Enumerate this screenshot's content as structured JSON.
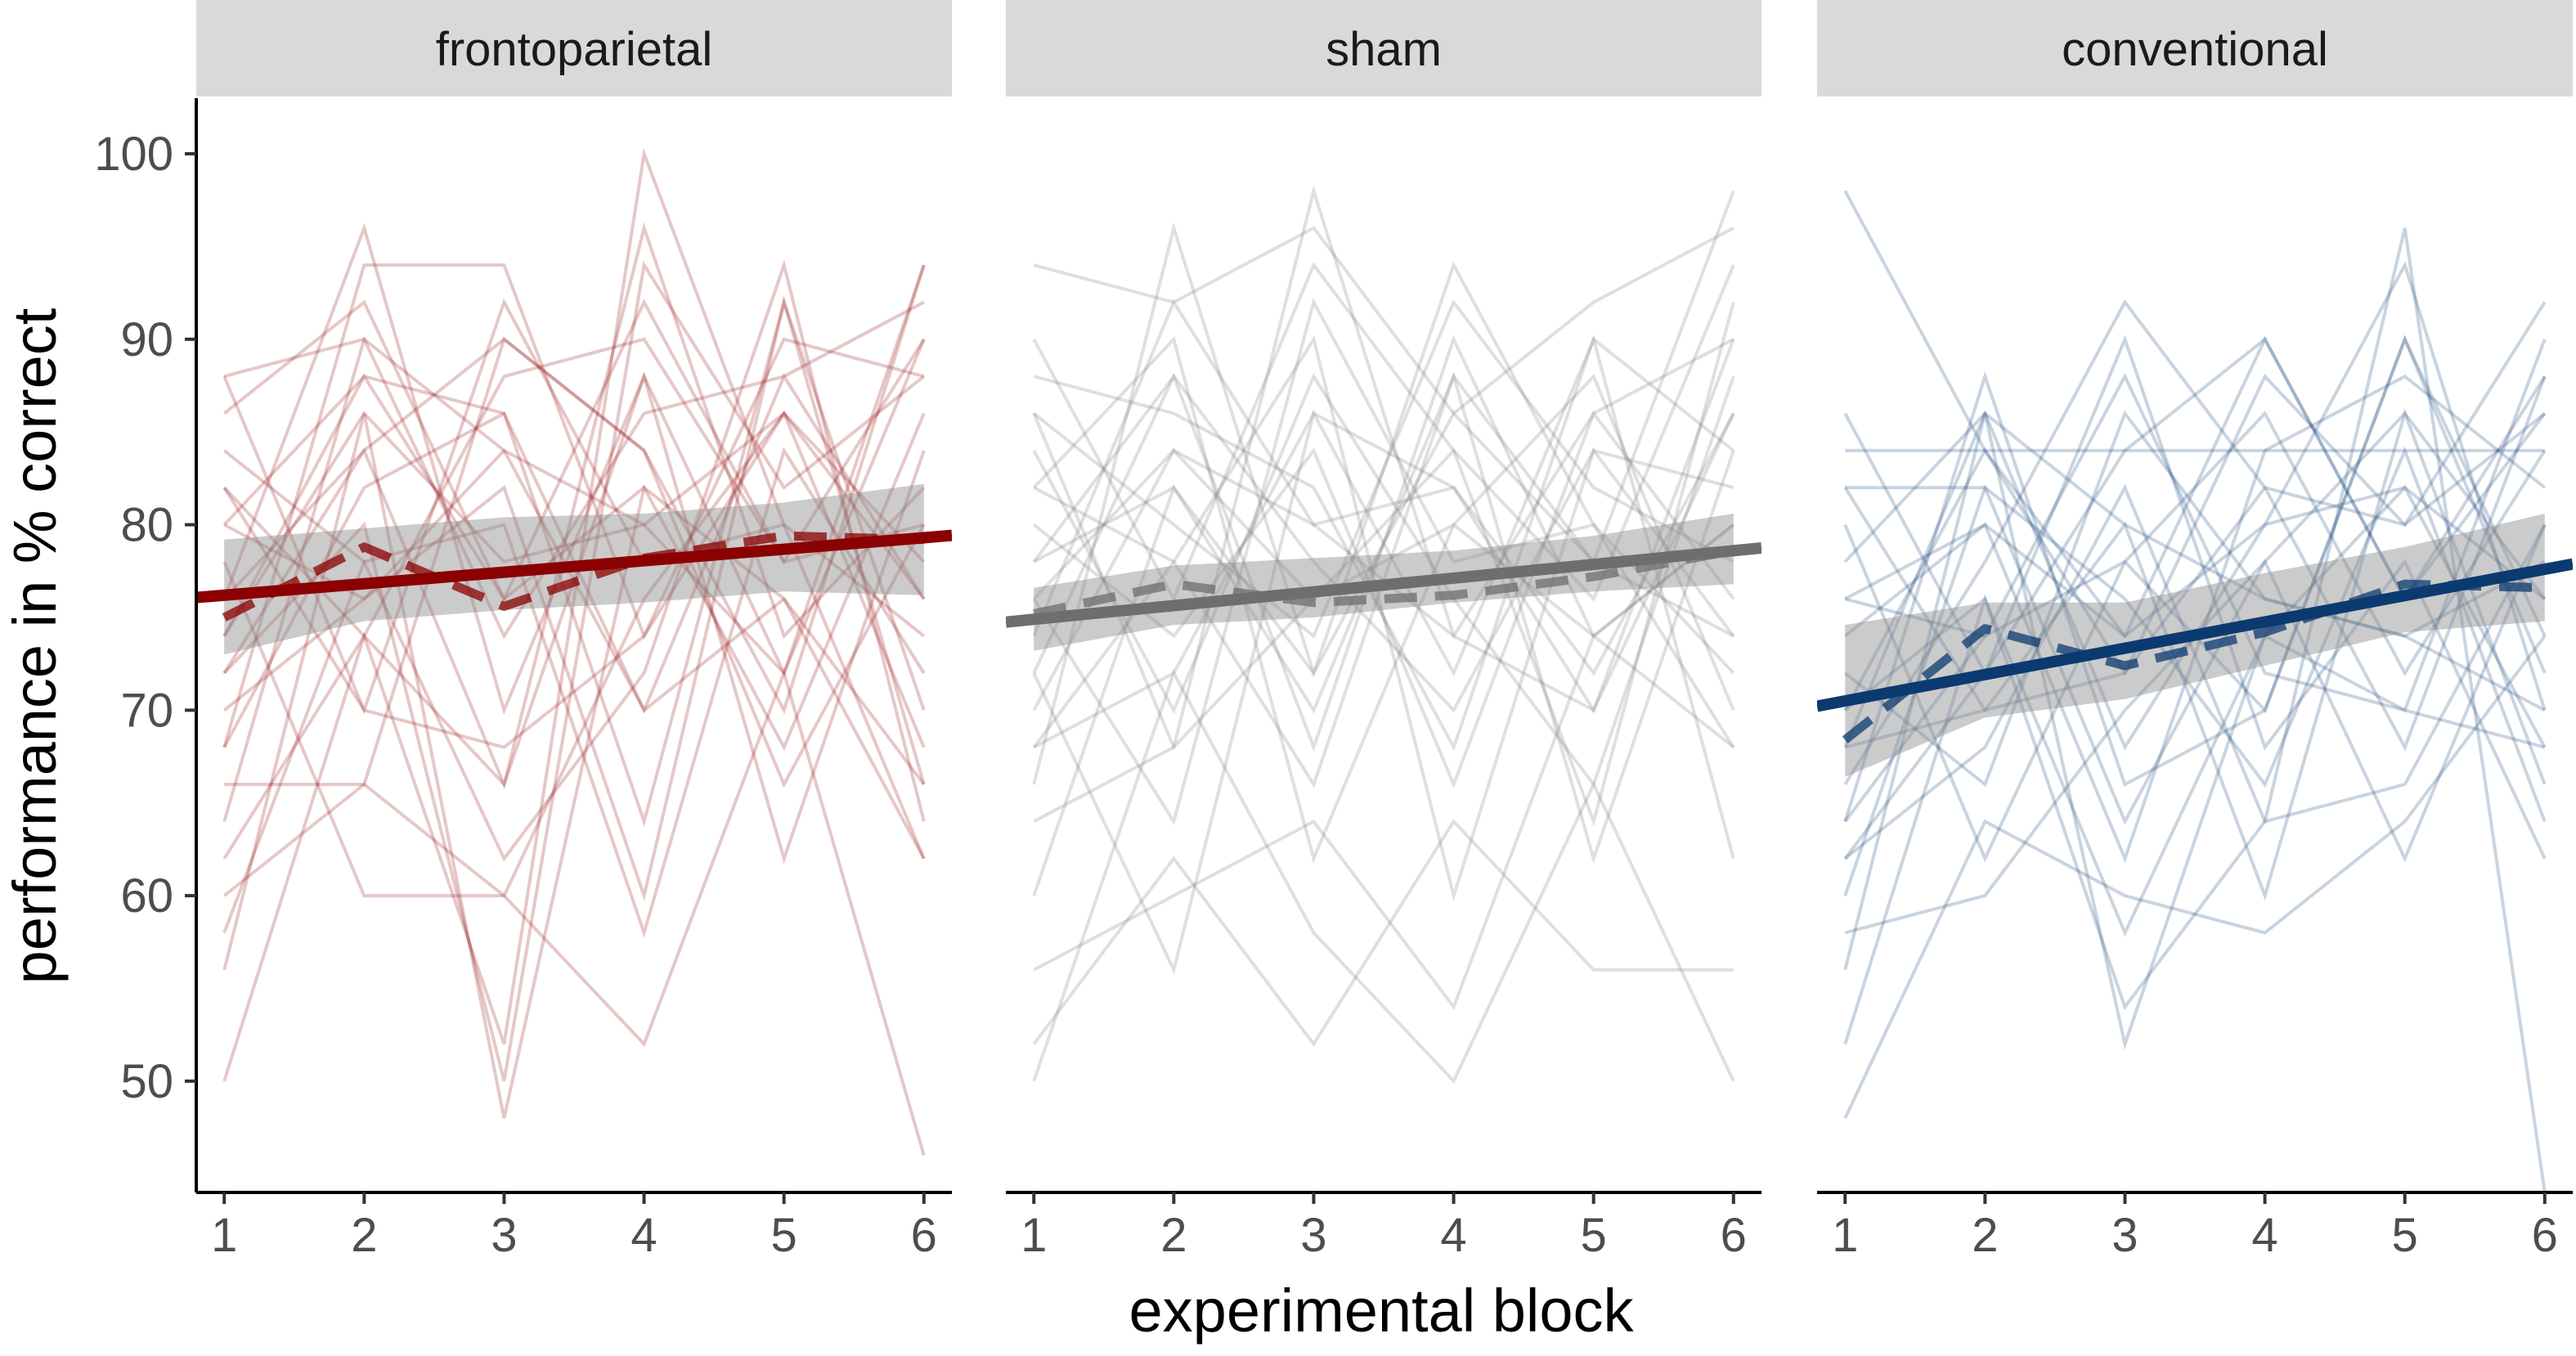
{
  "chart_data": {
    "type": "line",
    "xlabel": "experimental block",
    "ylabel": "performance in % correct",
    "x": [
      1,
      2,
      3,
      4,
      5,
      6
    ],
    "xlim": [
      0.8,
      6.2
    ],
    "ylim": [
      44,
      103
    ],
    "xticks": [
      1,
      2,
      3,
      4,
      5,
      6
    ],
    "yticks": [
      50,
      60,
      70,
      80,
      90,
      100
    ],
    "grid": false,
    "panels": [
      {
        "label": "frontoparietal",
        "color": "#8b0000",
        "fit_start": 76.2,
        "fit_end": 79.3,
        "band": {
          "lower": [
            73.0,
            74.8,
            75.4,
            75.8,
            76.4,
            76.2
          ],
          "upper": [
            79.2,
            79.8,
            80.4,
            80.6,
            81.2,
            82.2
          ]
        },
        "mean": [
          75.0,
          78.8,
          75.6,
          78.2,
          79.4,
          79.2
        ],
        "participants": [
          [
            50,
            74,
            66,
            88,
            72,
            94
          ],
          [
            56,
            86,
            48,
            82,
            76,
            62
          ],
          [
            60,
            66,
            60,
            52,
            72,
            46
          ],
          [
            62,
            74,
            52,
            100,
            80,
            62
          ],
          [
            64,
            90,
            84,
            70,
            88,
            76
          ],
          [
            66,
            66,
            90,
            84,
            70,
            94
          ],
          [
            68,
            94,
            94,
            74,
            86,
            76
          ],
          [
            70,
            76,
            82,
            60,
            92,
            66
          ],
          [
            72,
            80,
            50,
            94,
            82,
            88
          ],
          [
            74,
            86,
            78,
            80,
            72,
            90
          ],
          [
            76,
            96,
            70,
            88,
            62,
            84
          ],
          [
            78,
            60,
            60,
            76,
            86,
            68
          ],
          [
            80,
            88,
            86,
            64,
            92,
            70
          ],
          [
            82,
            74,
            88,
            90,
            78,
            80
          ],
          [
            84,
            78,
            62,
            72,
            94,
            64
          ],
          [
            86,
            92,
            76,
            82,
            68,
            86
          ],
          [
            88,
            70,
            92,
            78,
            80,
            74
          ],
          [
            88,
            90,
            74,
            86,
            88,
            92
          ],
          [
            72,
            84,
            66,
            96,
            74,
            82
          ],
          [
            58,
            78,
            80,
            58,
            84,
            72
          ],
          [
            76,
            84,
            90,
            84,
            66,
            80
          ],
          [
            82,
            70,
            68,
            74,
            90,
            88
          ],
          [
            68,
            82,
            86,
            70,
            76,
            66
          ],
          [
            74,
            88,
            76,
            92,
            78,
            90
          ],
          [
            80,
            76,
            84,
            80,
            86,
            78
          ]
        ]
      },
      {
        "label": "sham",
        "color": "#6e6e6e",
        "fit_start": 74.9,
        "fit_end": 78.6,
        "band": {
          "lower": [
            73.2,
            74.6,
            75.0,
            75.8,
            76.4,
            76.8
          ],
          "upper": [
            76.6,
            77.8,
            78.2,
            78.6,
            79.4,
            80.6
          ]
        },
        "mean": [
          75.2,
          76.8,
          75.8,
          76.2,
          77.2,
          78.6
        ],
        "participants": [
          [
            50,
            72,
            58,
            50,
            66,
            50
          ],
          [
            52,
            62,
            52,
            64,
            56,
            56
          ],
          [
            56,
            60,
            64,
            54,
            74,
            68
          ],
          [
            60,
            82,
            70,
            88,
            62,
            84
          ],
          [
            64,
            68,
            98,
            74,
            70,
            90
          ],
          [
            66,
            96,
            72,
            86,
            78,
            98
          ],
          [
            68,
            78,
            90,
            60,
            84,
            74
          ],
          [
            70,
            84,
            76,
            84,
            64,
            92
          ],
          [
            72,
            56,
            86,
            72,
            90,
            62
          ],
          [
            74,
            92,
            80,
            82,
            70,
            86
          ],
          [
            76,
            64,
            92,
            78,
            80,
            68
          ],
          [
            78,
            88,
            68,
            90,
            74,
            80
          ],
          [
            80,
            74,
            84,
            66,
            86,
            76
          ],
          [
            82,
            90,
            62,
            80,
            88,
            70
          ],
          [
            84,
            70,
            88,
            76,
            66,
            88
          ],
          [
            86,
            80,
            74,
            92,
            82,
            78
          ],
          [
            88,
            86,
            82,
            68,
            90,
            84
          ],
          [
            90,
            76,
            94,
            84,
            76,
            94
          ],
          [
            94,
            92,
            96,
            86,
            92,
            96
          ],
          [
            78,
            82,
            72,
            94,
            80,
            72
          ],
          [
            72,
            88,
            78,
            70,
            84,
            82
          ],
          [
            68,
            72,
            86,
            82,
            72,
            86
          ],
          [
            82,
            78,
            66,
            88,
            78,
            74
          ],
          [
            76,
            84,
            80,
            74,
            86,
            90
          ],
          [
            86,
            68,
            76,
            80,
            74,
            80
          ]
        ]
      },
      {
        "label": "conventional",
        "color": "#0b3a70",
        "fit_start": 70.5,
        "fit_end": 77.6,
        "band": {
          "lower": [
            66.4,
            69.6,
            70.6,
            72.4,
            74.2,
            74.8
          ],
          "upper": [
            74.6,
            75.8,
            75.8,
            77.4,
            78.8,
            80.6
          ]
        },
        "mean": [
          68.4,
          74.4,
          72.4,
          74.2,
          76.8,
          76.6
        ],
        "participants": [
          [
            48,
            64,
            60,
            58,
            64,
            74
          ],
          [
            52,
            76,
            54,
            64,
            96,
            44
          ],
          [
            56,
            86,
            52,
            74,
            70,
            68
          ],
          [
            58,
            60,
            70,
            78,
            62,
            80
          ],
          [
            60,
            82,
            76,
            66,
            84,
            64
          ],
          [
            62,
            72,
            84,
            90,
            76,
            86
          ],
          [
            64,
            88,
            66,
            70,
            90,
            72
          ],
          [
            66,
            78,
            92,
            82,
            68,
            88
          ],
          [
            68,
            70,
            80,
            60,
            86,
            66
          ],
          [
            70,
            84,
            72,
            88,
            80,
            92
          ],
          [
            72,
            66,
            86,
            76,
            74,
            78
          ],
          [
            74,
            80,
            62,
            84,
            88,
            82
          ],
          [
            76,
            74,
            88,
            72,
            70,
            90
          ],
          [
            78,
            86,
            68,
            80,
            94,
            70
          ],
          [
            80,
            62,
            78,
            86,
            72,
            84
          ],
          [
            82,
            82,
            64,
            78,
            86,
            76
          ],
          [
            84,
            84,
            84,
            84,
            84,
            84
          ],
          [
            86,
            72,
            90,
            68,
            78,
            62
          ],
          [
            98,
            84,
            74,
            80,
            82,
            76
          ],
          [
            62,
            68,
            82,
            64,
            66,
            80
          ],
          [
            70,
            76,
            58,
            74,
            82,
            68
          ],
          [
            76,
            80,
            74,
            90,
            76,
            88
          ],
          [
            64,
            74,
            78,
            70,
            90,
            74
          ],
          [
            82,
            70,
            72,
            82,
            80,
            86
          ],
          [
            68,
            86,
            80,
            76,
            74,
            70
          ]
        ]
      }
    ]
  }
}
